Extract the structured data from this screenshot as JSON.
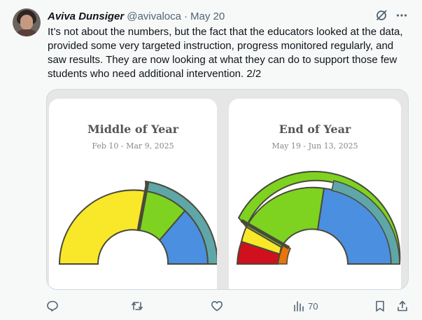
{
  "tweet": {
    "author_name": "Aviva Dunsiger",
    "handle": "@avivaloca",
    "separator": "·",
    "date": "May 20",
    "text": "It’s not about the numbers, but the fact that the educators looked at the data, provided some very targeted instruction, progress monitored regularly, and saw results. They are now looking at what they can do to support those few students who need additional intervention. 2/2"
  },
  "icons": {
    "grok": "grok-slash-circle-icon",
    "more": "more-horizontal-icon",
    "reply": "reply-bubble-icon",
    "retweet": "retweet-icon",
    "like": "heart-icon",
    "views": "bar-chart-icon",
    "bookmark": "bookmark-icon",
    "share": "share-upload-icon"
  },
  "media": {
    "cards": [
      {
        "title": "Middle of Year",
        "date_range": "Feb 10 - Mar 9, 2025"
      },
      {
        "title": "End of Year",
        "date_range": "May 19 - Jun 13, 2025"
      }
    ]
  },
  "actions": {
    "views_count": "70"
  },
  "colors": {
    "text": "#0f1419",
    "secondary": "#536471",
    "red": "#d0101c",
    "orange": "#e8740c",
    "yellow": "#f9e72a",
    "green": "#7ed321",
    "blue": "#4a8fe0",
    "teal_band": "#5fa6a8",
    "pointer": "#4a4a3a"
  }
}
